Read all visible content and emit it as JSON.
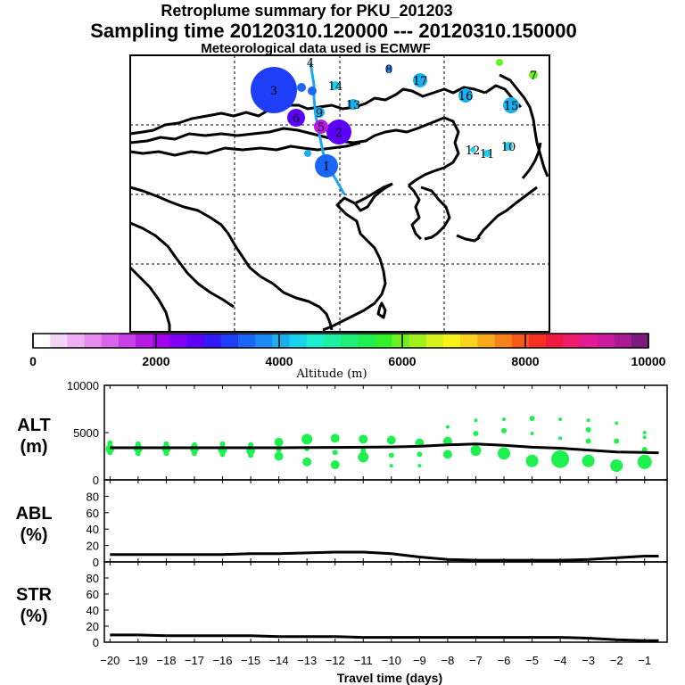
{
  "header": {
    "title": "Retroplume summary for PKU_201203",
    "sampling": "Sampling time   20120310.120000 --- 20120310.150000",
    "met": "Meteorological data used is ECMWF"
  },
  "colorbar": {
    "labels": [
      "0",
      "2000",
      "4000",
      "6000",
      "8000",
      "10000"
    ],
    "axis_title": "Altitude  (m)",
    "colors": [
      "#ffffff",
      "#f3d4f5",
      "#eeb0f3",
      "#e58cef",
      "#d865ea",
      "#c73fe5",
      "#b51de3",
      "#a200ee",
      "#8200f4",
      "#5c00f8",
      "#3219f7",
      "#1e3ff7",
      "#1a66f6",
      "#1a8af4",
      "#1ab0f0",
      "#1ad2ee",
      "#1deecd",
      "#1ef0a4",
      "#1ef07a",
      "#1ef050",
      "#34f02a",
      "#6cf020",
      "#a4f01a",
      "#d6f21a",
      "#f8f21a",
      "#fad21a",
      "#f8aa1a",
      "#f8821a",
      "#f85a1a",
      "#f82e20",
      "#f01a3e",
      "#ee1a6c",
      "#e21a94",
      "#cc1a9e",
      "#aa1a94",
      "#7e1a7c"
    ]
  },
  "map": {
    "plume_points": [
      {
        "label": "1",
        "altitude": 3500
      },
      {
        "label": "2",
        "altitude": 2700
      },
      {
        "label": "3",
        "altitude": 3100
      },
      {
        "label": "4",
        "altitude": 2400
      },
      {
        "label": "5",
        "altitude": 1900
      },
      {
        "label": "6",
        "altitude": 2500
      },
      {
        "label": "7",
        "altitude": 6000
      },
      {
        "label": "8",
        "altitude": 3800
      },
      {
        "label": "9",
        "altitude": 4000
      },
      {
        "label": "10",
        "altitude": 4200
      },
      {
        "label": "11",
        "altitude": 4300
      },
      {
        "label": "12",
        "altitude": 4400
      },
      {
        "label": "13",
        "altitude": 4000
      },
      {
        "label": "14",
        "altitude": 4200
      },
      {
        "label": "15",
        "altitude": 4000
      },
      {
        "label": "16",
        "altitude": 4000
      },
      {
        "label": "17",
        "altitude": 4100
      }
    ]
  },
  "chart_data": [
    {
      "type": "scatter",
      "panel": "ALT",
      "ylabel": "ALT\n(m)",
      "ylabel_line1": "ALT",
      "ylabel_line2": "(m)",
      "xlabel": "Travel time (days)",
      "xlim": [
        -20.2,
        -0.2
      ],
      "ylim": [
        0,
        10000
      ],
      "yticks": [
        "0",
        "5000",
        "10000"
      ],
      "mean_line": {
        "x": [
          -20,
          -19,
          -18,
          -17,
          -16,
          -15,
          -14,
          -13,
          -12,
          -11,
          -10,
          -9,
          -8,
          -7,
          -6,
          -5,
          -4,
          -3,
          -2,
          -1,
          -0.5
        ],
        "y": [
          3400,
          3400,
          3400,
          3400,
          3400,
          3400,
          3400,
          3420,
          3430,
          3450,
          3480,
          3550,
          3700,
          3800,
          3650,
          3450,
          3350,
          3150,
          2950,
          2900,
          2850
        ]
      },
      "clusters": [
        {
          "x": -20,
          "alt": [
            3900,
            3300,
            2900
          ]
        },
        {
          "x": -19,
          "alt": [
            3800,
            3300,
            2800
          ]
        },
        {
          "x": -18,
          "alt": [
            3800,
            3300,
            2800
          ]
        },
        {
          "x": -17,
          "alt": [
            3700,
            3300,
            2800
          ]
        },
        {
          "x": -16,
          "alt": [
            3800,
            3200,
            2700
          ]
        },
        {
          "x": -15,
          "alt": [
            3700,
            3100,
            2600
          ]
        },
        {
          "x": -14,
          "alt": [
            4000,
            3200,
            2500
          ]
        },
        {
          "x": -13,
          "alt": [
            4300,
            3300,
            1900
          ]
        },
        {
          "x": -12,
          "alt": [
            4400,
            2900,
            1600
          ]
        },
        {
          "x": -11,
          "alt": [
            4300,
            3100,
            2400
          ]
        },
        {
          "x": -10,
          "alt": [
            4200,
            2600,
            1500
          ]
        },
        {
          "x": -9,
          "alt": [
            3900,
            2700,
            1500
          ]
        },
        {
          "x": -8,
          "alt": [
            5600,
            4100,
            2700
          ]
        },
        {
          "x": -7,
          "alt": [
            6300,
            4900,
            3100
          ]
        },
        {
          "x": -6,
          "alt": [
            6400,
            5200,
            2800
          ]
        },
        {
          "x": -5,
          "alt": [
            6500,
            4900,
            2000
          ]
        },
        {
          "x": -4,
          "alt": [
            6400,
            4400,
            2200
          ]
        },
        {
          "x": -3,
          "alt": [
            6300,
            5300,
            4100,
            2000
          ]
        },
        {
          "x": -2,
          "alt": [
            6000,
            4100,
            1500
          ]
        },
        {
          "x": -1,
          "alt": [
            5000,
            4500,
            3200,
            1900
          ]
        }
      ],
      "cluster_sizes": [
        {
          "x": -20,
          "r": [
            3,
            5,
            3
          ]
        },
        {
          "x": -19,
          "r": [
            3,
            5,
            3
          ]
        },
        {
          "x": -18,
          "r": [
            3,
            5,
            3
          ]
        },
        {
          "x": -17,
          "r": [
            3,
            5,
            3
          ]
        },
        {
          "x": -16,
          "r": [
            3,
            5,
            3
          ]
        },
        {
          "x": -15,
          "r": [
            3,
            5,
            3
          ]
        },
        {
          "x": -14,
          "r": [
            5,
            3,
            5
          ]
        },
        {
          "x": -13,
          "r": [
            6,
            3,
            5
          ]
        },
        {
          "x": -12,
          "r": [
            5,
            3,
            5
          ]
        },
        {
          "x": -11,
          "r": [
            5,
            3,
            6
          ]
        },
        {
          "x": -10,
          "r": [
            5,
            3,
            2
          ]
        },
        {
          "x": -9,
          "r": [
            5,
            3,
            2
          ]
        },
        {
          "x": -8,
          "r": [
            2,
            5,
            5
          ]
        },
        {
          "x": -7,
          "r": [
            2,
            3,
            6
          ]
        },
        {
          "x": -6,
          "r": [
            2,
            3,
            7
          ]
        },
        {
          "x": -5,
          "r": [
            3,
            2,
            7
          ]
        },
        {
          "x": -4,
          "r": [
            2,
            2,
            10
          ]
        },
        {
          "x": -3,
          "r": [
            2,
            3,
            3,
            7
          ]
        },
        {
          "x": -2,
          "r": [
            2,
            3,
            7
          ]
        },
        {
          "x": -1,
          "r": [
            2,
            2,
            3,
            8
          ]
        }
      ]
    },
    {
      "type": "line",
      "panel": "ABL",
      "ylabel": "ABL\n(%)",
      "ylabel_line1": "ABL",
      "ylabel_line2": "(%)",
      "xlim": [
        -20.2,
        -0.2
      ],
      "ylim": [
        0,
        100
      ],
      "yticks": [
        "0",
        "20",
        "40",
        "60",
        "80"
      ],
      "x": [
        -20,
        -19,
        -18,
        -17,
        -16,
        -15,
        -14,
        -13,
        -12,
        -11,
        -10,
        -9,
        -8,
        -7,
        -6,
        -5,
        -4,
        -3,
        -2,
        -1,
        -0.5
      ],
      "y": [
        9,
        9,
        9,
        9,
        9,
        10,
        10,
        11,
        12,
        12,
        10,
        6,
        3,
        2,
        2,
        2,
        2,
        3,
        5,
        7,
        7
      ]
    },
    {
      "type": "line",
      "panel": "STR",
      "ylabel": "STR\n(%)",
      "ylabel_line1": "STR",
      "ylabel_line2": "(%)",
      "xlim": [
        -20.2,
        -0.2
      ],
      "ylim": [
        0,
        100
      ],
      "yticks": [
        "0",
        "20",
        "40",
        "60",
        "80"
      ],
      "xticks": [
        "−20",
        "−19",
        "−18",
        "−17",
        "−16",
        "−15",
        "−14",
        "−13",
        "−12",
        "−11",
        "−10",
        "−9",
        "−8",
        "−7",
        "−6",
        "−5",
        "−4",
        "−3",
        "−2",
        "−1"
      ],
      "x": [
        -20,
        -19,
        -18,
        -17,
        -16,
        -15,
        -14,
        -13,
        -12,
        -11,
        -10,
        -9,
        -8,
        -7,
        -6,
        -5,
        -4,
        -3,
        -2,
        -1,
        -0.5
      ],
      "y": [
        9,
        9,
        8,
        8,
        8,
        8,
        7,
        7,
        7,
        6,
        6,
        6,
        6,
        6,
        6,
        6,
        6,
        5,
        3,
        2,
        2
      ]
    }
  ]
}
